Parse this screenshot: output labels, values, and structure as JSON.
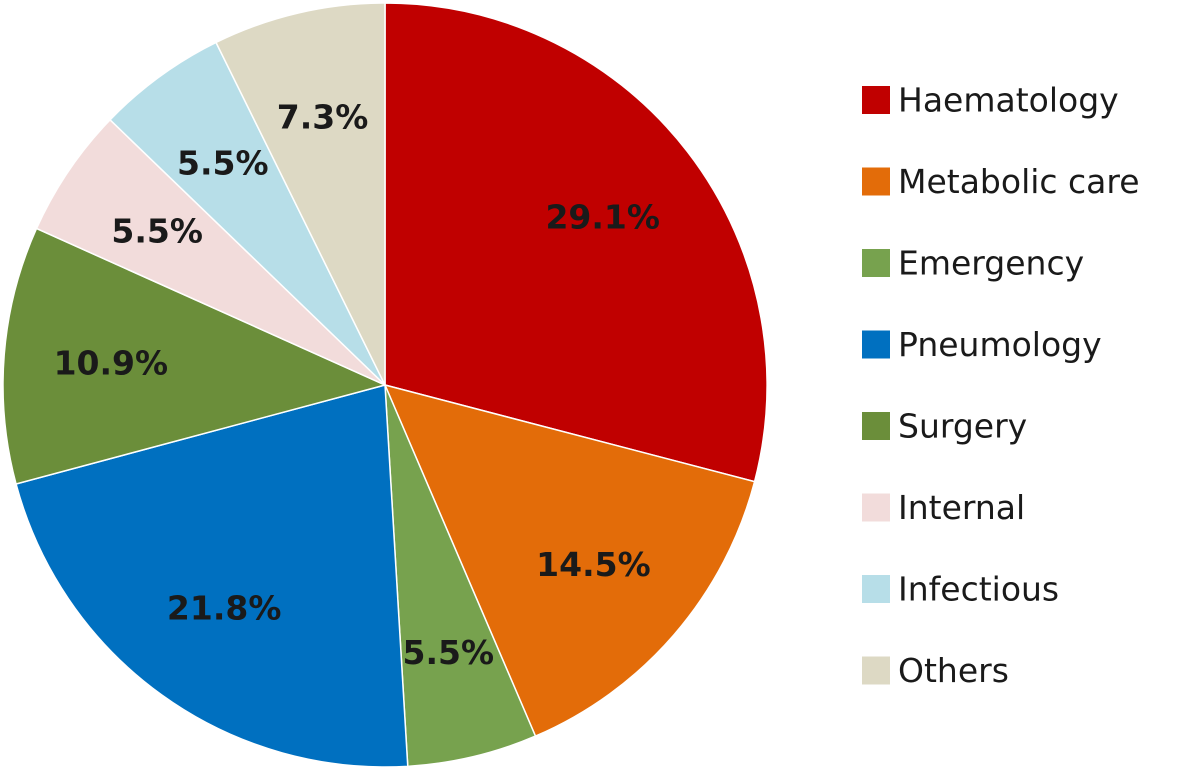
{
  "chart_data": {
    "type": "pie",
    "start_angle_deg": 0,
    "direction": "clockwise",
    "legend_position": "right",
    "slices": [
      {
        "label": "Haematology",
        "value": 29.1,
        "display": "29.1%",
        "color": "#C00000"
      },
      {
        "label": "Metabolic care",
        "value": 14.5,
        "display": "14.5%",
        "color": "#E36C09"
      },
      {
        "label": "Emergency",
        "value": 5.5,
        "display": "5.5%",
        "color": "#77A24E"
      },
      {
        "label": "Pneumology",
        "value": 21.8,
        "display": "21.8%",
        "color": "#0070C0"
      },
      {
        "label": "Surgery",
        "value": 10.9,
        "display": "10.9%",
        "color": "#6B8E3A"
      },
      {
        "label": "Internal",
        "value": 5.5,
        "display": "5.5%",
        "color": "#F2DCDB"
      },
      {
        "label": "Infectious",
        "value": 5.5,
        "display": "5.5%",
        "color": "#B7DEE8"
      },
      {
        "label": "Others",
        "value": 7.3,
        "display": "7.3%",
        "color": "#DDD9C4"
      }
    ]
  }
}
